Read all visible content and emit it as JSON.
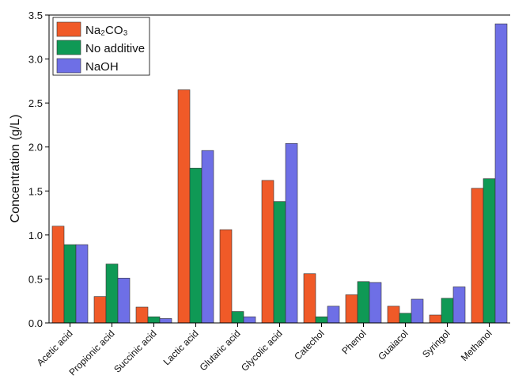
{
  "chart_data": {
    "type": "bar",
    "ylabel": "Concentration (g/L)",
    "categories": [
      "Acetic acid",
      "Propionic acid",
      "Succinic acid",
      "Lactic acid",
      "Glutaric acid",
      "Glycolic acid",
      "Catechol",
      "Phenol",
      "Guaiacol",
      "Syringol",
      "Methanol"
    ],
    "series": [
      {
        "name": "Na₂CO₃",
        "color": "#f05a28",
        "values": [
          1.1,
          0.3,
          0.18,
          2.65,
          1.06,
          1.62,
          0.56,
          0.32,
          0.19,
          0.09,
          1.53
        ]
      },
      {
        "name": "No additive",
        "color": "#0f9955",
        "values": [
          0.89,
          0.67,
          0.07,
          1.76,
          0.13,
          1.38,
          0.07,
          0.47,
          0.11,
          0.28,
          1.64
        ]
      },
      {
        "name": "NaOH",
        "color": "#6e6fe6",
        "values": [
          0.89,
          0.51,
          0.05,
          1.96,
          0.07,
          2.04,
          0.19,
          0.46,
          0.27,
          0.41,
          3.4
        ]
      }
    ],
    "ylim": [
      0,
      3.5
    ],
    "yticks": [
      {
        "value": 0,
        "label": "0.0"
      },
      0.5,
      {
        "value": 1,
        "label": "1.0"
      },
      1.5,
      {
        "value": 2,
        "label": "2.0"
      },
      2.5,
      {
        "value": 3,
        "label": "3.0"
      },
      3.5
    ],
    "legend": "upper left"
  }
}
